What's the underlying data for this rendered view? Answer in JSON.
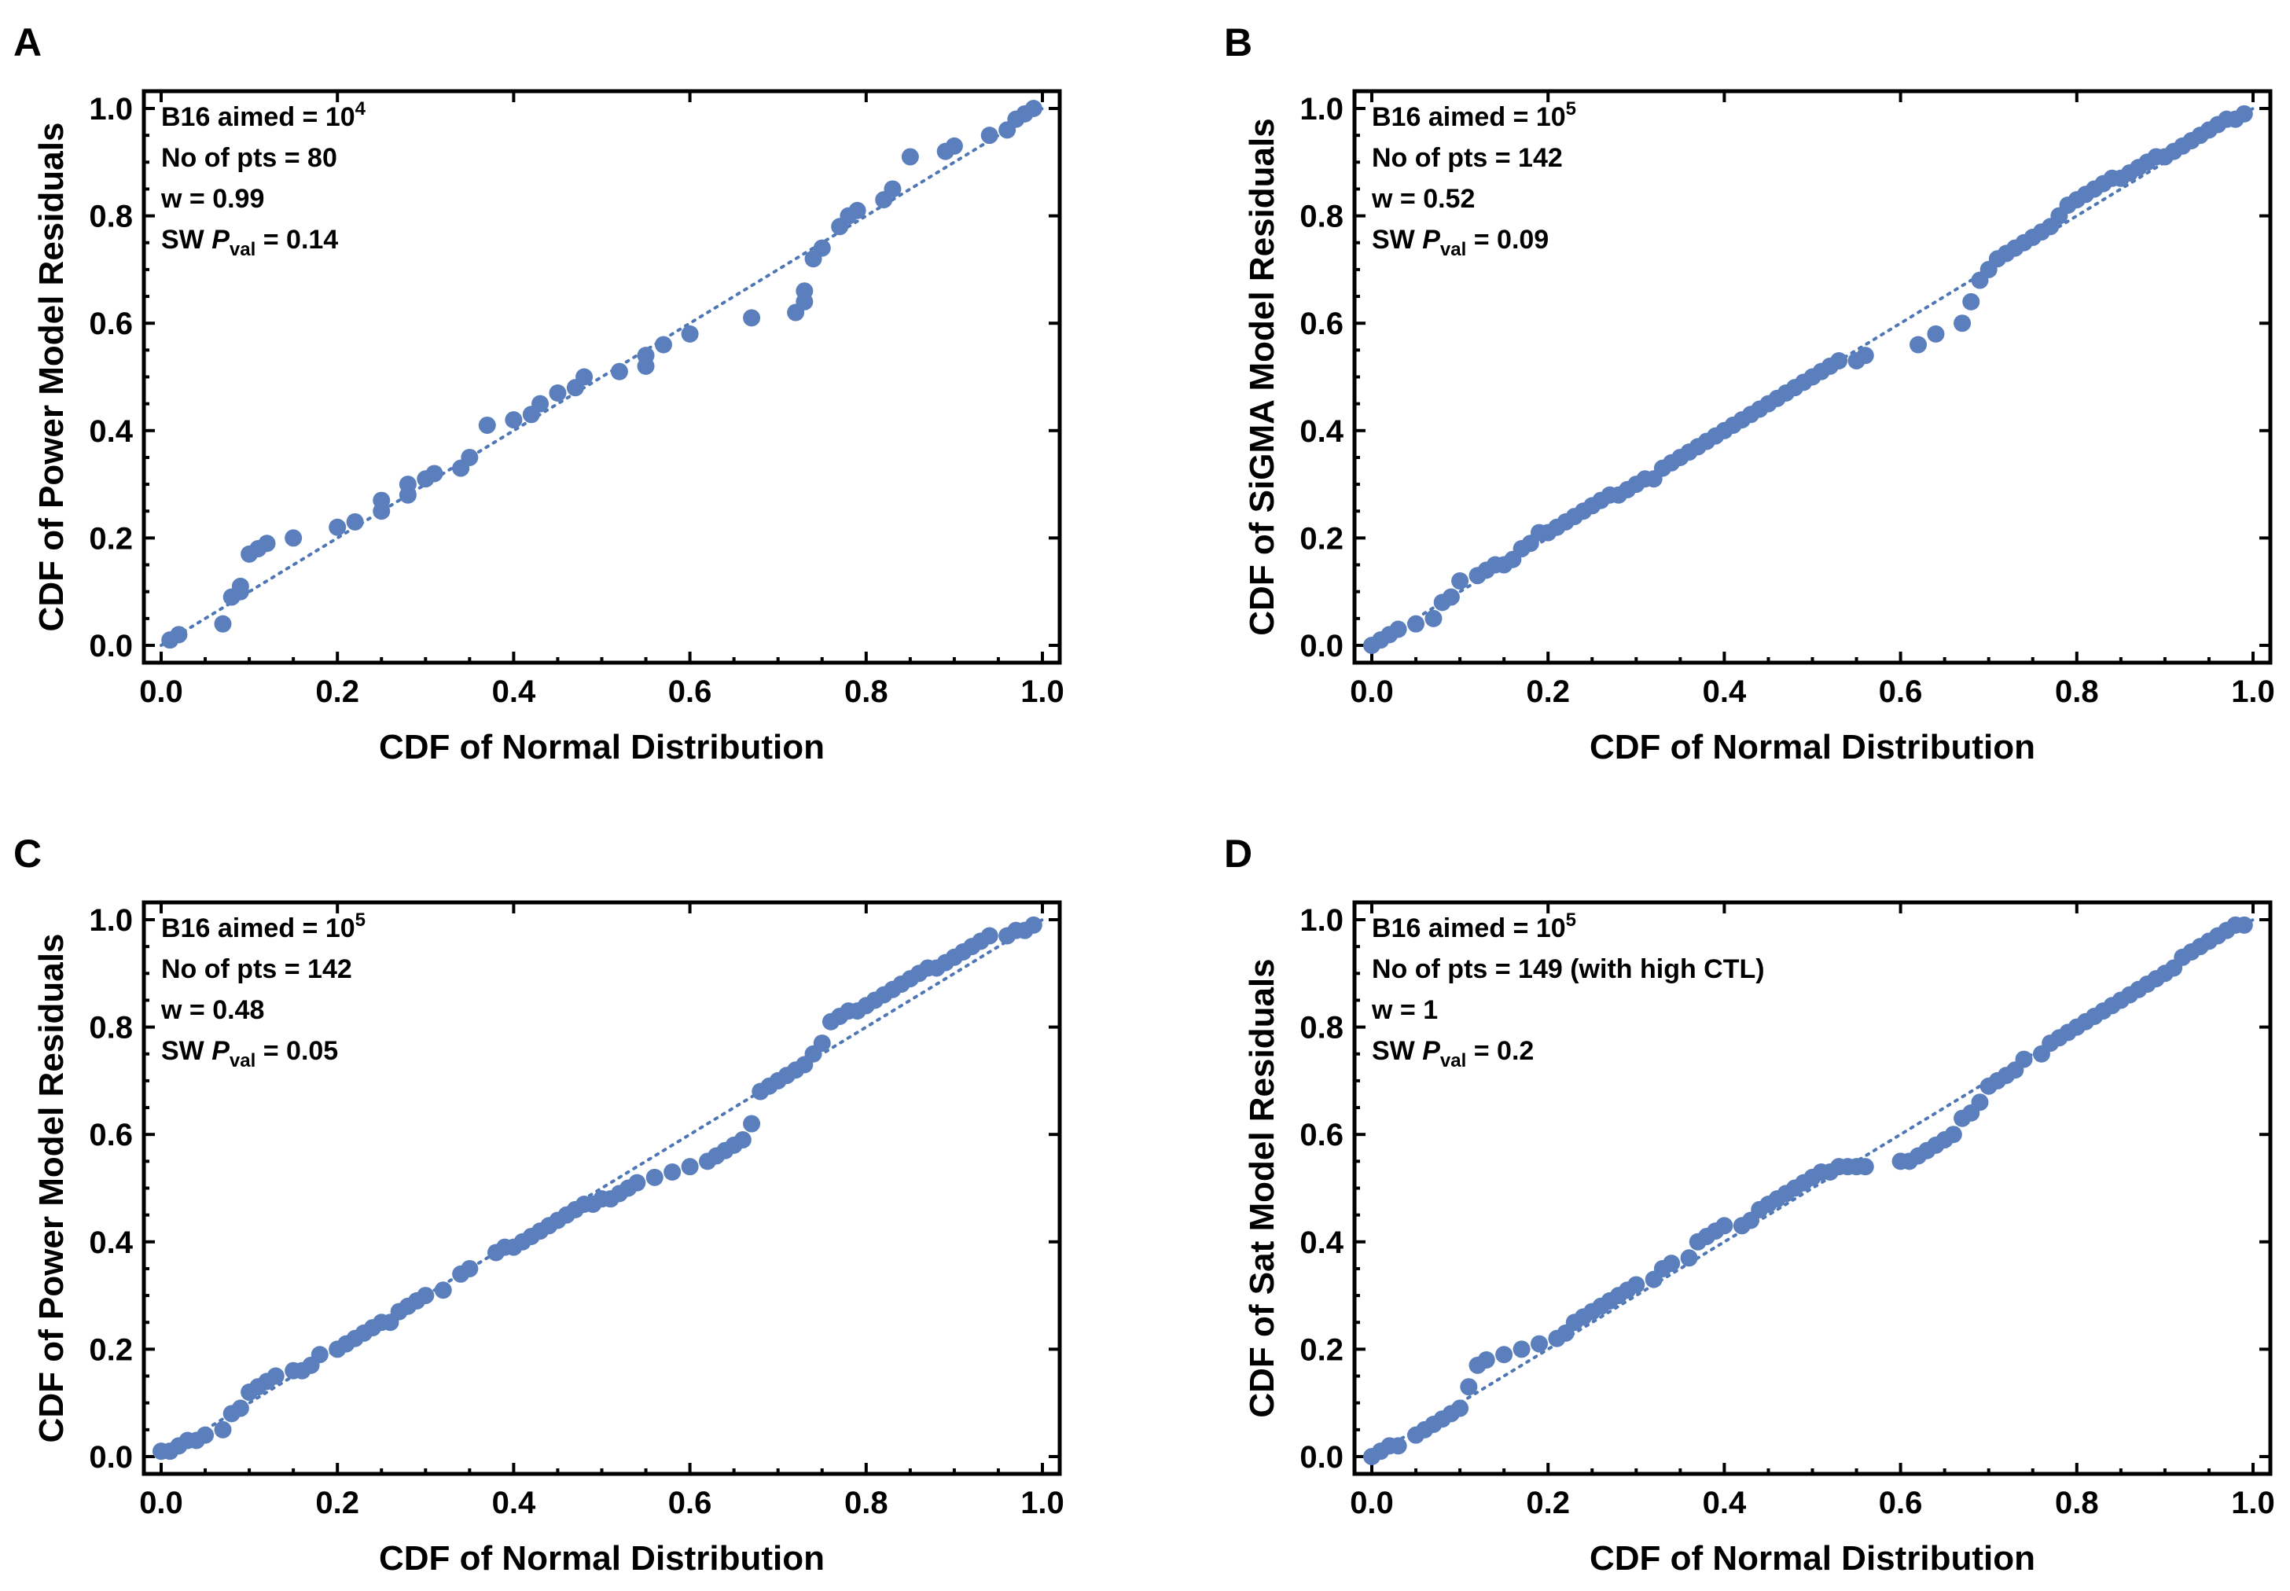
{
  "chart_data": [
    {
      "type": "scatter",
      "panel": "A",
      "xlabel": "CDF of Normal Distribution",
      "ylabel": "CDF of Power Model Residuals",
      "xlim": [
        0,
        1
      ],
      "ylim": [
        0,
        1
      ],
      "xticks": [
        "0.0",
        "0.2",
        "0.4",
        "0.6",
        "0.8",
        "1.0"
      ],
      "yticks": [
        "0.0",
        "0.2",
        "0.4",
        "0.6",
        "0.8",
        "1.0"
      ],
      "annotation": {
        "line1_prefix": "B16 aimed = 10",
        "line1_exp": "4",
        "line2": "No of pts = 80",
        "line3": "w = 0.99",
        "line4_prefix": "SW ",
        "line4_p": "P",
        "line4_sub": "val",
        "line4_suffix": " = 0.14"
      },
      "reference_line": [
        [
          0,
          0
        ],
        [
          1,
          1
        ]
      ],
      "x": [
        0.01,
        0.02,
        0.07,
        0.08,
        0.09,
        0.09,
        0.1,
        0.11,
        0.12,
        0.15,
        0.2,
        0.22,
        0.25,
        0.25,
        0.28,
        0.28,
        0.3,
        0.31,
        0.34,
        0.35,
        0.37,
        0.4,
        0.42,
        0.43,
        0.45,
        0.47,
        0.48,
        0.52,
        0.55,
        0.55,
        0.57,
        0.6,
        0.67,
        0.72,
        0.73,
        0.73,
        0.74,
        0.75,
        0.77,
        0.78,
        0.79,
        0.82,
        0.83,
        0.85,
        0.89,
        0.9,
        0.94,
        0.96,
        0.97,
        0.98,
        0.99
      ],
      "y": [
        0.01,
        0.02,
        0.04,
        0.09,
        0.1,
        0.11,
        0.17,
        0.18,
        0.19,
        0.2,
        0.22,
        0.23,
        0.25,
        0.27,
        0.28,
        0.3,
        0.31,
        0.32,
        0.33,
        0.35,
        0.41,
        0.42,
        0.43,
        0.45,
        0.47,
        0.48,
        0.5,
        0.51,
        0.52,
        0.54,
        0.56,
        0.58,
        0.61,
        0.62,
        0.64,
        0.66,
        0.72,
        0.74,
        0.78,
        0.8,
        0.81,
        0.83,
        0.85,
        0.91,
        0.92,
        0.93,
        0.95,
        0.96,
        0.98,
        0.99,
        1.0
      ]
    },
    {
      "type": "scatter",
      "panel": "B",
      "xlabel": "CDF of Normal Distribution",
      "ylabel": "CDF of SiGMA Model Residuals",
      "xlim": [
        0,
        1
      ],
      "ylim": [
        0,
        1
      ],
      "xticks": [
        "0.0",
        "0.2",
        "0.4",
        "0.6",
        "0.8",
        "1.0"
      ],
      "yticks": [
        "0.0",
        "0.2",
        "0.4",
        "0.6",
        "0.8",
        "1.0"
      ],
      "annotation": {
        "line1_prefix": "B16 aimed = 10",
        "line1_exp": "5",
        "line2": "No of pts = 142",
        "line3": "w = 0.52",
        "line4_prefix": "SW ",
        "line4_p": "P",
        "line4_sub": "val",
        "line4_suffix": " = 0.09"
      },
      "reference_line": [
        [
          0,
          0
        ],
        [
          1,
          1
        ]
      ],
      "x": [
        0.0,
        0.01,
        0.02,
        0.03,
        0.05,
        0.07,
        0.08,
        0.09,
        0.1,
        0.12,
        0.13,
        0.14,
        0.15,
        0.16,
        0.17,
        0.18,
        0.19,
        0.2,
        0.21,
        0.22,
        0.23,
        0.24,
        0.25,
        0.26,
        0.27,
        0.28,
        0.29,
        0.3,
        0.31,
        0.32,
        0.33,
        0.34,
        0.35,
        0.36,
        0.37,
        0.38,
        0.39,
        0.4,
        0.41,
        0.42,
        0.43,
        0.44,
        0.45,
        0.46,
        0.47,
        0.48,
        0.49,
        0.5,
        0.51,
        0.52,
        0.53,
        0.55,
        0.56,
        0.62,
        0.64,
        0.67,
        0.68,
        0.69,
        0.7,
        0.71,
        0.72,
        0.73,
        0.74,
        0.75,
        0.76,
        0.77,
        0.78,
        0.79,
        0.8,
        0.81,
        0.82,
        0.83,
        0.84,
        0.85,
        0.86,
        0.87,
        0.88,
        0.89,
        0.9,
        0.91,
        0.92,
        0.93,
        0.94,
        0.95,
        0.96,
        0.97,
        0.98,
        0.99
      ],
      "y": [
        0.0,
        0.01,
        0.02,
        0.03,
        0.04,
        0.05,
        0.08,
        0.09,
        0.12,
        0.13,
        0.14,
        0.15,
        0.15,
        0.16,
        0.18,
        0.19,
        0.21,
        0.21,
        0.22,
        0.23,
        0.24,
        0.25,
        0.26,
        0.27,
        0.28,
        0.28,
        0.29,
        0.3,
        0.31,
        0.31,
        0.33,
        0.34,
        0.35,
        0.36,
        0.37,
        0.38,
        0.39,
        0.4,
        0.41,
        0.42,
        0.43,
        0.44,
        0.45,
        0.46,
        0.47,
        0.48,
        0.49,
        0.5,
        0.51,
        0.52,
        0.53,
        0.53,
        0.54,
        0.56,
        0.58,
        0.6,
        0.64,
        0.68,
        0.7,
        0.72,
        0.73,
        0.74,
        0.75,
        0.76,
        0.77,
        0.78,
        0.8,
        0.82,
        0.83,
        0.84,
        0.85,
        0.86,
        0.87,
        0.87,
        0.88,
        0.89,
        0.9,
        0.91,
        0.91,
        0.92,
        0.93,
        0.94,
        0.95,
        0.96,
        0.97,
        0.98,
        0.98,
        0.99
      ]
    },
    {
      "type": "scatter",
      "panel": "C",
      "xlabel": "CDF of Normal Distribution",
      "ylabel": "CDF of Power Model Residuals",
      "xlim": [
        0,
        1
      ],
      "ylim": [
        0,
        1
      ],
      "xticks": [
        "0.0",
        "0.2",
        "0.4",
        "0.6",
        "0.8",
        "1.0"
      ],
      "yticks": [
        "0.0",
        "0.2",
        "0.4",
        "0.6",
        "0.8",
        "1.0"
      ],
      "annotation": {
        "line1_prefix": "B16 aimed = 10",
        "line1_exp": "5",
        "line2": "No of pts = 142",
        "line3": "w = 0.48",
        "line4_prefix": "SW ",
        "line4_p": "P",
        "line4_sub": "val",
        "line4_suffix": " = 0.05"
      },
      "reference_line": [
        [
          0,
          0
        ],
        [
          1,
          1
        ]
      ],
      "x": [
        0.0,
        0.01,
        0.02,
        0.03,
        0.04,
        0.05,
        0.07,
        0.08,
        0.09,
        0.1,
        0.11,
        0.12,
        0.13,
        0.15,
        0.16,
        0.17,
        0.18,
        0.2,
        0.21,
        0.22,
        0.23,
        0.24,
        0.25,
        0.26,
        0.27,
        0.28,
        0.29,
        0.3,
        0.32,
        0.34,
        0.35,
        0.38,
        0.39,
        0.4,
        0.41,
        0.42,
        0.43,
        0.44,
        0.45,
        0.46,
        0.47,
        0.48,
        0.49,
        0.5,
        0.51,
        0.52,
        0.53,
        0.54,
        0.56,
        0.58,
        0.6,
        0.62,
        0.63,
        0.64,
        0.65,
        0.66,
        0.67,
        0.68,
        0.69,
        0.7,
        0.71,
        0.72,
        0.73,
        0.74,
        0.75,
        0.76,
        0.77,
        0.78,
        0.79,
        0.8,
        0.81,
        0.82,
        0.83,
        0.84,
        0.85,
        0.86,
        0.87,
        0.88,
        0.89,
        0.9,
        0.91,
        0.92,
        0.93,
        0.94,
        0.96,
        0.97,
        0.98,
        0.99
      ],
      "y": [
        0.01,
        0.01,
        0.02,
        0.03,
        0.03,
        0.04,
        0.05,
        0.08,
        0.09,
        0.12,
        0.13,
        0.14,
        0.15,
        0.16,
        0.16,
        0.17,
        0.19,
        0.2,
        0.21,
        0.22,
        0.23,
        0.24,
        0.25,
        0.25,
        0.27,
        0.28,
        0.29,
        0.3,
        0.31,
        0.34,
        0.35,
        0.38,
        0.39,
        0.39,
        0.4,
        0.41,
        0.42,
        0.43,
        0.44,
        0.45,
        0.46,
        0.47,
        0.47,
        0.48,
        0.48,
        0.49,
        0.5,
        0.51,
        0.52,
        0.53,
        0.54,
        0.55,
        0.56,
        0.57,
        0.58,
        0.59,
        0.62,
        0.68,
        0.69,
        0.7,
        0.71,
        0.72,
        0.73,
        0.75,
        0.77,
        0.81,
        0.82,
        0.83,
        0.83,
        0.84,
        0.85,
        0.86,
        0.87,
        0.88,
        0.89,
        0.9,
        0.91,
        0.91,
        0.92,
        0.93,
        0.94,
        0.95,
        0.96,
        0.97,
        0.97,
        0.98,
        0.98,
        0.99
      ]
    },
    {
      "type": "scatter",
      "panel": "D",
      "xlabel": "CDF of Normal Distribution",
      "ylabel": "CDF of Sat Model Residuals",
      "xlim": [
        0,
        1
      ],
      "ylim": [
        0,
        1
      ],
      "xticks": [
        "0.0",
        "0.2",
        "0.4",
        "0.6",
        "0.8",
        "1.0"
      ],
      "yticks": [
        "0.0",
        "0.2",
        "0.4",
        "0.6",
        "0.8",
        "1.0"
      ],
      "annotation": {
        "line1_prefix": "B16 aimed = 10",
        "line1_exp": "5",
        "line2": "No of pts = 149 (with high CTL)",
        "line3": "w = 1",
        "line4_prefix": "SW ",
        "line4_p": "P",
        "line4_sub": "val",
        "line4_suffix": " = 0.2"
      },
      "reference_line": [
        [
          0,
          0
        ],
        [
          1,
          1
        ]
      ],
      "x": [
        0.0,
        0.01,
        0.02,
        0.03,
        0.05,
        0.06,
        0.07,
        0.08,
        0.09,
        0.1,
        0.11,
        0.12,
        0.13,
        0.15,
        0.17,
        0.19,
        0.21,
        0.22,
        0.23,
        0.24,
        0.25,
        0.26,
        0.27,
        0.28,
        0.29,
        0.3,
        0.32,
        0.33,
        0.34,
        0.36,
        0.37,
        0.38,
        0.39,
        0.4,
        0.42,
        0.43,
        0.44,
        0.45,
        0.46,
        0.47,
        0.48,
        0.49,
        0.5,
        0.51,
        0.52,
        0.53,
        0.54,
        0.55,
        0.56,
        0.6,
        0.61,
        0.62,
        0.63,
        0.64,
        0.65,
        0.66,
        0.67,
        0.68,
        0.69,
        0.7,
        0.71,
        0.72,
        0.73,
        0.74,
        0.76,
        0.77,
        0.78,
        0.79,
        0.8,
        0.81,
        0.82,
        0.83,
        0.84,
        0.85,
        0.86,
        0.87,
        0.88,
        0.89,
        0.9,
        0.91,
        0.92,
        0.93,
        0.94,
        0.95,
        0.96,
        0.97,
        0.98,
        0.99
      ],
      "y": [
        0.0,
        0.01,
        0.02,
        0.02,
        0.04,
        0.05,
        0.06,
        0.07,
        0.08,
        0.09,
        0.13,
        0.17,
        0.18,
        0.19,
        0.2,
        0.21,
        0.22,
        0.23,
        0.25,
        0.26,
        0.27,
        0.28,
        0.29,
        0.3,
        0.31,
        0.32,
        0.33,
        0.35,
        0.36,
        0.37,
        0.4,
        0.41,
        0.42,
        0.43,
        0.43,
        0.44,
        0.46,
        0.47,
        0.48,
        0.49,
        0.5,
        0.51,
        0.52,
        0.53,
        0.53,
        0.54,
        0.54,
        0.54,
        0.54,
        0.55,
        0.55,
        0.56,
        0.57,
        0.58,
        0.59,
        0.6,
        0.63,
        0.64,
        0.66,
        0.69,
        0.7,
        0.71,
        0.72,
        0.74,
        0.75,
        0.77,
        0.78,
        0.79,
        0.8,
        0.81,
        0.82,
        0.83,
        0.84,
        0.85,
        0.86,
        0.87,
        0.88,
        0.89,
        0.9,
        0.91,
        0.93,
        0.94,
        0.95,
        0.96,
        0.97,
        0.98,
        0.99,
        0.99
      ]
    }
  ]
}
